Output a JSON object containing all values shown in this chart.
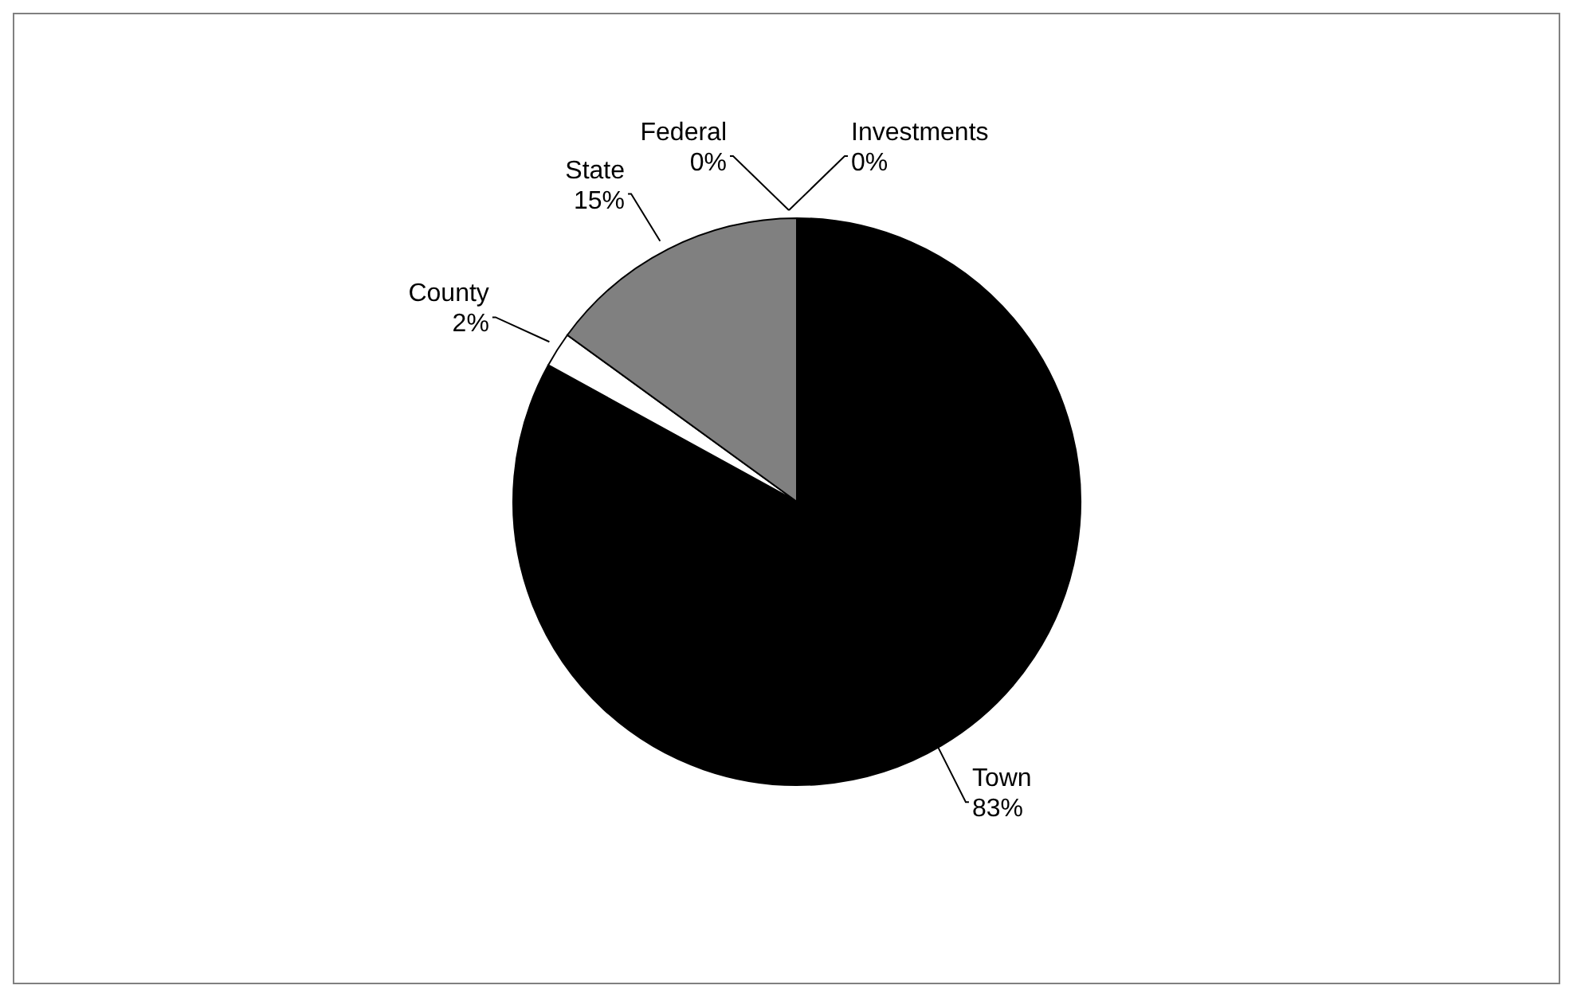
{
  "chart_data": {
    "type": "pie",
    "categories": [
      "Town",
      "County",
      "State",
      "Federal",
      "Investments"
    ],
    "values": [
      83,
      2,
      15,
      0,
      0
    ],
    "value_labels": [
      "83%",
      "2%",
      "15%",
      "0%",
      "0%"
    ],
    "colors": [
      "#000000",
      "#ffffff",
      "#808080",
      "#000000",
      "#000000"
    ]
  }
}
